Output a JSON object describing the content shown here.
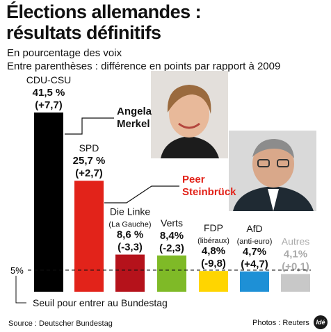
{
  "header": {
    "title_line1": "Élections allemandes :",
    "title_line2": "résultats définitifs",
    "subtitle_line1": "En pourcentage des voix",
    "subtitle_line2": "Entre parenthèses : différence en points par rapport à 2009"
  },
  "people": {
    "merkel_line1": "Angela",
    "merkel_line2": "Merkel",
    "steinbruck_line1": "Peer",
    "steinbruck_line2": "Steinbrück"
  },
  "threshold": {
    "value_label": "5%",
    "caption": "Seuil pour entrer au Bundestag"
  },
  "footer": {
    "source": "Source : Deutscher Bundestag",
    "photos": "Photos : Reuters",
    "logo": "Idé"
  },
  "colors": {
    "cdu": "#000000",
    "spd": "#e2231a",
    "linke": "#b5121b",
    "verts": "#7fba27",
    "fdp": "#ffd500",
    "afd": "#1e90d6",
    "autres": "#c8c8c8",
    "steinbruck_name": "#e2231a"
  },
  "chart_data": {
    "type": "bar",
    "unit": "%",
    "threshold": 5,
    "categories": [
      "CDU-CSU",
      "SPD",
      "Die Linke",
      "Verts",
      "FDP",
      "AfD",
      "Autres"
    ],
    "sublabels": [
      "",
      "",
      "(La Gauche)",
      "",
      "(libéraux)",
      "(anti-euro)",
      ""
    ],
    "values": [
      41.5,
      25.7,
      8.6,
      8.4,
      4.8,
      4.7,
      4.1
    ],
    "value_labels": [
      "41,5 %",
      "25,7 %",
      "8,6 %",
      "8,4%",
      "4,8%",
      "4,7%",
      "4,1%"
    ],
    "changes": [
      7.7,
      2.7,
      -3.3,
      -2.3,
      -9.8,
      4.7,
      0.1
    ],
    "change_labels": [
      "(+7,7)",
      "(+2,7)",
      "(-3,3)",
      "(-2,3)",
      "(-9,8)",
      "(+4,7)",
      "(+0,1)"
    ],
    "color_keys": [
      "cdu",
      "spd",
      "linke",
      "verts",
      "fdp",
      "afd",
      "autres"
    ]
  }
}
